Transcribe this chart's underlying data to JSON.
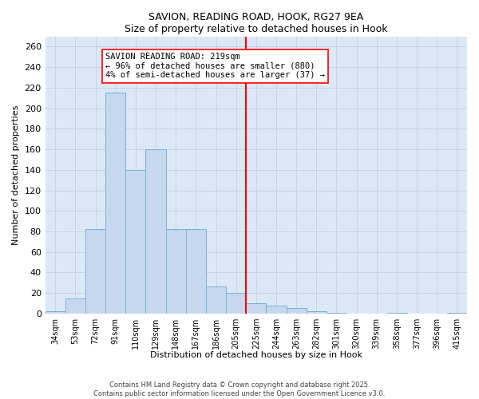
{
  "title": "SAVION, READING ROAD, HOOK, RG27 9EA",
  "subtitle": "Size of property relative to detached houses in Hook",
  "xlabel": "Distribution of detached houses by size in Hook",
  "ylabel": "Number of detached properties",
  "bin_labels": [
    "34sqm",
    "53sqm",
    "72sqm",
    "91sqm",
    "110sqm",
    "129sqm",
    "148sqm",
    "167sqm",
    "186sqm",
    "205sqm",
    "225sqm",
    "244sqm",
    "263sqm",
    "282sqm",
    "301sqm",
    "320sqm",
    "339sqm",
    "358sqm",
    "377sqm",
    "396sqm",
    "415sqm"
  ],
  "bar_values": [
    2,
    15,
    82,
    215,
    140,
    160,
    82,
    82,
    26,
    20,
    10,
    8,
    5,
    2,
    1,
    0,
    0,
    1,
    0,
    0,
    1
  ],
  "bar_color": "#c5d8f0",
  "bar_edge_color": "#7aafd4",
  "grid_color": "#c8d4e0",
  "background_color": "#dce8f5",
  "red_line_index": 10,
  "annotation_text": "SAVION READING ROAD: 219sqm\n← 96% of detached houses are smaller (880)\n4% of semi-detached houses are larger (37) →",
  "footer": "Contains HM Land Registry data © Crown copyright and database right 2025.\nContains public sector information licensed under the Open Government Licence v3.0.",
  "ylim": [
    0,
    270
  ],
  "yticks": [
    0,
    20,
    40,
    60,
    80,
    100,
    120,
    140,
    160,
    180,
    200,
    220,
    240,
    260
  ]
}
